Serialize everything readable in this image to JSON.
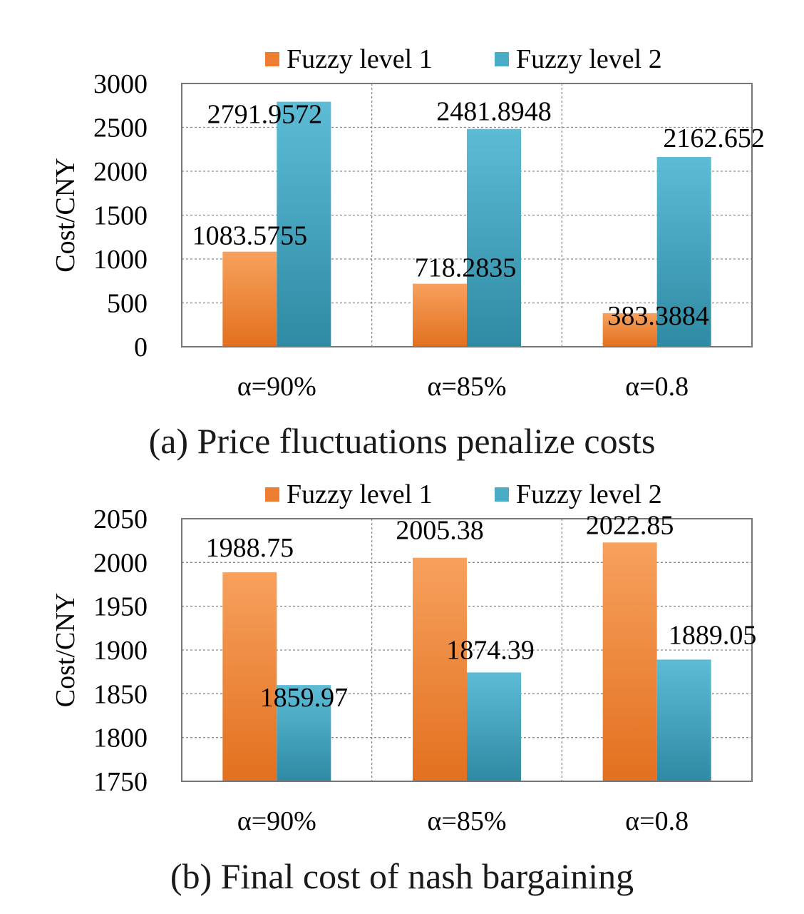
{
  "colors": {
    "series1": "#ed7d31",
    "series2": "#4bacc6"
  },
  "chart_data": [
    {
      "type": "bar",
      "title": "(a) Price fluctuations penalize costs",
      "ylabel": "Cost/CNY",
      "xlabel": "",
      "categories": [
        "α=90%",
        "α=85%",
        "α=0.8"
      ],
      "ylim": [
        0,
        3000
      ],
      "yticks": [
        0,
        500,
        1000,
        1500,
        2000,
        2500,
        3000
      ],
      "grid": true,
      "legend_position": "top",
      "series": [
        {
          "name": "Fuzzy level 1",
          "values": [
            1083.5755,
            718.2835,
            383.3884
          ],
          "labels": [
            "1083.5755",
            "718.2835",
            "383.3884"
          ]
        },
        {
          "name": "Fuzzy level 2",
          "values": [
            2791.9572,
            2481.8948,
            2162.652
          ],
          "labels": [
            "2791.9572",
            "2481.8948",
            "2162.652"
          ]
        }
      ]
    },
    {
      "type": "bar",
      "title": "(b) Final cost of nash bargaining",
      "ylabel": "Cost/CNY",
      "xlabel": "",
      "categories": [
        "α=90%",
        "α=85%",
        "α=0.8"
      ],
      "ylim": [
        1750,
        2050
      ],
      "yticks": [
        1750,
        1800,
        1850,
        1900,
        1950,
        2000,
        2050
      ],
      "grid": true,
      "legend_position": "top",
      "series": [
        {
          "name": "Fuzzy level 1",
          "values": [
            1988.75,
            2005.38,
            2022.85
          ],
          "labels": [
            "1988.75",
            "2005.38",
            "2022.85"
          ]
        },
        {
          "name": "Fuzzy level 2",
          "values": [
            1859.97,
            1874.39,
            1889.05
          ],
          "labels": [
            "1859.97",
            "1874.39",
            "1889.05"
          ]
        }
      ]
    }
  ]
}
